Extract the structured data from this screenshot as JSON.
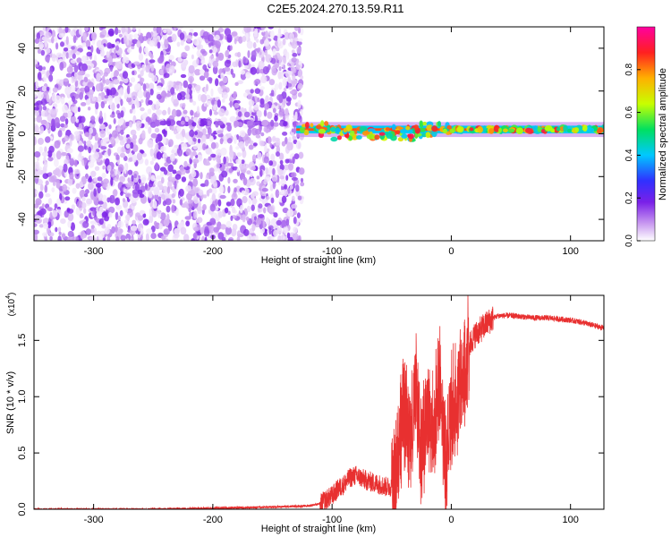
{
  "title": "C2E5.2024.270.13.59.R11",
  "chart_data": [
    {
      "type": "heatmap",
      "title": "C2E5.2024.270.13.59.R11",
      "xlabel": "Height of straight line (km)",
      "ylabel": "Frequency (Hz)",
      "xlim": [
        -350,
        128
      ],
      "ylim": [
        -50,
        50
      ],
      "xticks": [
        -300,
        -200,
        -100,
        0,
        100
      ],
      "xtick_labels": [
        "-300",
        "-200",
        "-100",
        "0",
        "100"
      ],
      "yticks": [
        -40,
        -20,
        0,
        20,
        40
      ],
      "ytick_labels": [
        "-40",
        "-20",
        "0",
        "20",
        "40"
      ],
      "colorbar": {
        "label": "Normalized spectral amplitude",
        "range": [
          0,
          1
        ],
        "ticks": [
          0.0,
          0.2,
          0.4,
          0.6,
          0.8
        ],
        "tick_labels": [
          "0.0",
          "0.2",
          "0.4",
          "0.6",
          "0.8"
        ],
        "colors": [
          "#ffffff",
          "#c99af0",
          "#7a20e8",
          "#3030ff",
          "#00c8ff",
          "#00e060",
          "#c8ff00",
          "#ffb000",
          "#ff2020",
          "#ff00a0"
        ]
      },
      "features": [
        {
          "name": "noise region",
          "x_range": [
            -350,
            -125
          ],
          "y_range": [
            -50,
            50
          ],
          "amplitude": 0.12
        },
        {
          "name": "weak carrier",
          "x_range": [
            -250,
            -130
          ],
          "y": 5,
          "amplitude": 0.2
        },
        {
          "name": "tracked carrier",
          "x_range": [
            -130,
            128
          ],
          "y": 2,
          "amplitude": 0.85
        }
      ]
    },
    {
      "type": "line",
      "xlabel": "Height of straight line (km)",
      "ylabel": "SNR (10 * v/v)",
      "y_multiplier_label": "(x10",
      "y_multiplier_exp": "4",
      "y_multiplier_close": ")",
      "xlim": [
        -350,
        128
      ],
      "ylim": [
        0,
        1.9
      ],
      "xticks": [
        -300,
        -200,
        -100,
        0,
        100
      ],
      "xtick_labels": [
        "-300",
        "-200",
        "-100",
        "0",
        "100"
      ],
      "yticks": [
        0,
        0.5,
        1.0,
        1.5
      ],
      "ytick_labels": [
        "0.0",
        "0.5",
        "1.0",
        "1.5"
      ],
      "color": "#e83030",
      "series": [
        {
          "x": [
            -350,
            -300,
            -250,
            -200,
            -150,
            -120,
            -110,
            -100,
            -95,
            -90,
            -85,
            -80,
            -70,
            -60,
            -55,
            -50,
            -45,
            -40,
            -35,
            -30,
            -25,
            -20,
            -15,
            -10,
            -5,
            0,
            5,
            10,
            15,
            20,
            25,
            30,
            35,
            40,
            50,
            60,
            70,
            80,
            90,
            100,
            110,
            120,
            128
          ],
          "y": [
            0.0,
            0.0,
            0.0,
            0.01,
            0.02,
            0.03,
            0.05,
            0.12,
            0.18,
            0.22,
            0.28,
            0.3,
            0.25,
            0.22,
            0.2,
            0.2,
            0.45,
            0.9,
            0.6,
            1.1,
            0.5,
            0.9,
            0.7,
            1.2,
            0.4,
            0.9,
            1.0,
            1.2,
            1.45,
            1.55,
            1.6,
            1.65,
            1.7,
            1.72,
            1.72,
            1.71,
            1.7,
            1.7,
            1.69,
            1.68,
            1.66,
            1.63,
            1.61
          ]
        }
      ]
    }
  ]
}
